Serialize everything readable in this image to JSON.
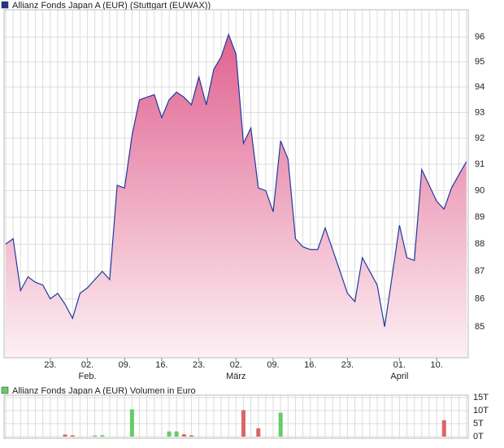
{
  "chart_data": [
    {
      "type": "area",
      "log": true,
      "grid": true,
      "legend": "Allianz Fonds Japan A (EUR) (Stuttgart (EUWAX))",
      "legend_color": "#1a3399",
      "line_color": "#1f3aa0",
      "fill_top": "#e0628f",
      "fill_bottom": "#fdf0f4",
      "values": [
        88.0,
        88.2,
        86.3,
        86.8,
        86.6,
        86.5,
        86.0,
        86.2,
        85.8,
        85.3,
        86.2,
        86.4,
        86.7,
        87.0,
        86.7,
        90.2,
        90.1,
        92.1,
        93.5,
        93.6,
        93.7,
        92.8,
        93.5,
        93.8,
        93.6,
        93.3,
        94.4,
        93.3,
        94.7,
        95.2,
        96.1,
        95.3,
        91.8,
        92.4,
        90.1,
        90.0,
        89.2,
        91.9,
        91.2,
        88.2,
        87.9,
        87.8,
        87.8,
        88.6,
        87.8,
        87.0,
        86.2,
        85.9,
        87.5,
        87.0,
        86.5,
        85.0,
        86.8,
        88.7,
        87.5,
        87.4,
        90.8,
        90.2,
        89.6,
        89.3,
        90.1,
        90.6,
        91.1
      ],
      "ylim": [
        83.9,
        97.1
      ],
      "yticks": [
        85,
        86,
        87,
        88,
        89,
        90,
        91,
        92,
        93,
        94,
        95,
        96
      ],
      "xticks": [
        {
          "value": 6,
          "label": "23."
        },
        {
          "value": 11,
          "label": "02."
        },
        {
          "value": 16,
          "label": "09."
        },
        {
          "value": 21,
          "label": "16."
        },
        {
          "value": 26,
          "label": "23."
        },
        {
          "value": 31,
          "label": "02."
        },
        {
          "value": 36,
          "label": "09."
        },
        {
          "value": 41,
          "label": "16."
        },
        {
          "value": 46,
          "label": "23."
        },
        {
          "value": 53,
          "label": "01."
        },
        {
          "value": 58,
          "label": "10."
        }
      ],
      "month_labels": [
        {
          "value": 11,
          "label": "Feb."
        },
        {
          "value": 31,
          "label": "März"
        },
        {
          "value": 53,
          "label": "April"
        }
      ]
    },
    {
      "type": "bar",
      "grid": true,
      "legend": "Allianz Fonds Japan A (EUR) Volumen in Euro",
      "legend_color": "#66cc66",
      "up_color": "#66cc66",
      "down_color": "#dd6666",
      "values": [
        0,
        0,
        0,
        0,
        0,
        0,
        0,
        0,
        800,
        500,
        0,
        0,
        400,
        500,
        0,
        0,
        0,
        10500,
        0,
        0,
        0,
        0,
        2000,
        2000,
        900,
        500,
        0,
        0,
        0,
        0,
        0,
        0,
        10200,
        0,
        3200,
        0,
        0,
        9200,
        0,
        0,
        0,
        0,
        0,
        0,
        0,
        0,
        0,
        0,
        0,
        0,
        0,
        0,
        0,
        0,
        0,
        0,
        0,
        0,
        0,
        6300,
        0,
        0,
        0
      ],
      "ylim": [
        0,
        15000
      ],
      "yticks": [
        {
          "value": 0,
          "label": "0T"
        },
        {
          "value": 5000,
          "label": "5T"
        },
        {
          "value": 10000,
          "label": "10T"
        },
        {
          "value": 15000,
          "label": "15T"
        }
      ]
    }
  ]
}
